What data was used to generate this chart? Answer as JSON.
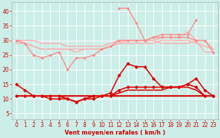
{
  "bg_color": "#cceee8",
  "grid_color": "#ffffff",
  "xlabel": "Vent moyen/en rafales ( km/h )",
  "xlabel_color": "#cc0000",
  "tick_color": "#cc0000",
  "xlim": [
    -0.5,
    23.5
  ],
  "ylim": [
    3,
    43
  ],
  "yticks": [
    5,
    10,
    15,
    20,
    25,
    30,
    35,
    40
  ],
  "xticks": [
    0,
    1,
    2,
    3,
    4,
    5,
    6,
    7,
    8,
    9,
    10,
    11,
    12,
    13,
    14,
    15,
    16,
    17,
    18,
    19,
    20,
    21,
    22,
    23
  ],
  "series": [
    {
      "x": [
        0,
        1,
        2,
        3,
        4,
        5,
        6,
        7,
        8,
        9,
        10,
        11,
        12,
        13,
        14,
        15,
        16,
        17,
        18,
        19,
        20,
        21,
        22,
        23
      ],
      "y": [
        30,
        30,
        30,
        29,
        29,
        29,
        28,
        28,
        28,
        28,
        28,
        29,
        30,
        30,
        30,
        30,
        30,
        31,
        31,
        31,
        33,
        30,
        30,
        27
      ],
      "color": "#ffaaaa",
      "lw": 1.0,
      "marker": null,
      "ms": 0
    },
    {
      "x": [
        0,
        1,
        2,
        3,
        4,
        5,
        6,
        7,
        8,
        9,
        10,
        11,
        12,
        13,
        14,
        15,
        16,
        17,
        18,
        19,
        20,
        21,
        22,
        23
      ],
      "y": [
        29,
        29,
        28,
        27,
        27,
        27,
        27,
        27,
        27,
        27,
        27,
        28,
        29,
        29,
        29,
        29,
        29,
        30,
        30,
        30,
        30,
        29,
        28,
        27
      ],
      "color": "#ffaaaa",
      "lw": 1.0,
      "marker": null,
      "ms": 0
    },
    {
      "x": [
        0,
        1,
        2,
        3,
        4,
        5,
        6,
        7,
        8,
        9,
        10,
        11,
        12,
        13,
        14,
        15,
        16,
        17,
        18,
        19,
        20,
        21,
        22,
        23
      ],
      "y": [
        30,
        29,
        28,
        27,
        27,
        27,
        27,
        26,
        27,
        27,
        27,
        28,
        29,
        30,
        30,
        30,
        30,
        29,
        29,
        29,
        29,
        30,
        26,
        26
      ],
      "color": "#ffaaaa",
      "lw": 1.0,
      "marker": null,
      "ms": 0
    },
    {
      "x": [
        0,
        1,
        2,
        3,
        4,
        5,
        6,
        7,
        8,
        9,
        10,
        11,
        12,
        13,
        14,
        15,
        16,
        17,
        18,
        19,
        20,
        21,
        22,
        23
      ],
      "y": [
        30,
        29,
        25,
        24,
        25,
        26,
        20,
        24,
        24,
        25,
        27,
        28,
        30,
        30,
        30,
        30,
        31,
        31,
        31,
        31,
        31,
        30,
        30,
        26
      ],
      "color": "#ff8888",
      "lw": 1.0,
      "marker": "D",
      "ms": 2
    },
    {
      "x": [
        12,
        13,
        14,
        15,
        16,
        17,
        18,
        19,
        20,
        21
      ],
      "y": [
        41,
        41,
        36,
        30,
        31,
        32,
        32,
        32,
        32,
        37
      ],
      "color": "#ff8888",
      "lw": 1.0,
      "marker": "D",
      "ms": 2
    },
    {
      "x": [
        0,
        1,
        2,
        3,
        4,
        5,
        6,
        7,
        8,
        9,
        10,
        11,
        12,
        13,
        14,
        15,
        16,
        17,
        18,
        19,
        20,
        21,
        22,
        23
      ],
      "y": [
        15,
        13,
        11,
        11,
        11,
        11,
        10,
        9,
        10,
        11,
        11,
        12,
        18,
        22,
        21,
        21,
        17,
        14,
        14,
        14,
        15,
        17,
        13,
        11
      ],
      "color": "#dd0000",
      "lw": 1.2,
      "marker": "D",
      "ms": 2.5
    },
    {
      "x": [
        0,
        1,
        2,
        3,
        4,
        5,
        6,
        7,
        8,
        9,
        10,
        11,
        12,
        13,
        14,
        15,
        16,
        17,
        18,
        19,
        20,
        21,
        22,
        23
      ],
      "y": [
        11,
        11,
        11,
        11,
        10,
        10,
        10,
        9,
        10,
        10,
        11,
        11,
        13,
        14,
        14,
        14,
        14,
        14,
        14,
        14,
        15,
        14,
        11,
        11
      ],
      "color": "#dd0000",
      "lw": 1.2,
      "marker": "D",
      "ms": 2.5
    },
    {
      "x": [
        0,
        1,
        2,
        3,
        4,
        5,
        6,
        7,
        8,
        9,
        10,
        11,
        12,
        13,
        14,
        15,
        16,
        17,
        18,
        19,
        20,
        21,
        22,
        23
      ],
      "y": [
        11,
        11,
        11,
        11,
        11,
        11,
        10,
        9,
        10,
        11,
        11,
        11,
        11,
        11,
        11,
        11,
        11,
        11,
        11,
        11,
        11,
        11,
        11,
        11
      ],
      "color": "#dd0000",
      "lw": 1.2,
      "marker": null,
      "ms": 0
    },
    {
      "x": [
        0,
        1,
        2,
        3,
        4,
        5,
        6,
        7,
        8,
        9,
        10,
        11,
        12,
        13,
        14,
        15,
        16,
        17,
        18,
        19,
        20,
        21,
        22,
        23
      ],
      "y": [
        11,
        11,
        11,
        11,
        11,
        11,
        11,
        11,
        11,
        11,
        11,
        11,
        12,
        13,
        13,
        13,
        13,
        13,
        14,
        14,
        14,
        13,
        11,
        11
      ],
      "color": "#dd0000",
      "lw": 1.2,
      "marker": null,
      "ms": 0
    },
    {
      "x": [
        0,
        1,
        2,
        3,
        4,
        5,
        6,
        7,
        8,
        9,
        10,
        11,
        12,
        13,
        14,
        15,
        16,
        17,
        18,
        19,
        20,
        21,
        22,
        23
      ],
      "y": [
        11,
        11,
        11,
        11,
        11,
        11,
        11,
        11,
        11,
        11,
        11,
        11,
        11,
        11,
        11,
        11,
        11,
        11,
        11,
        11,
        11,
        11,
        11,
        11
      ],
      "color": "#dd0000",
      "lw": 1.5,
      "marker": null,
      "ms": 0
    }
  ]
}
